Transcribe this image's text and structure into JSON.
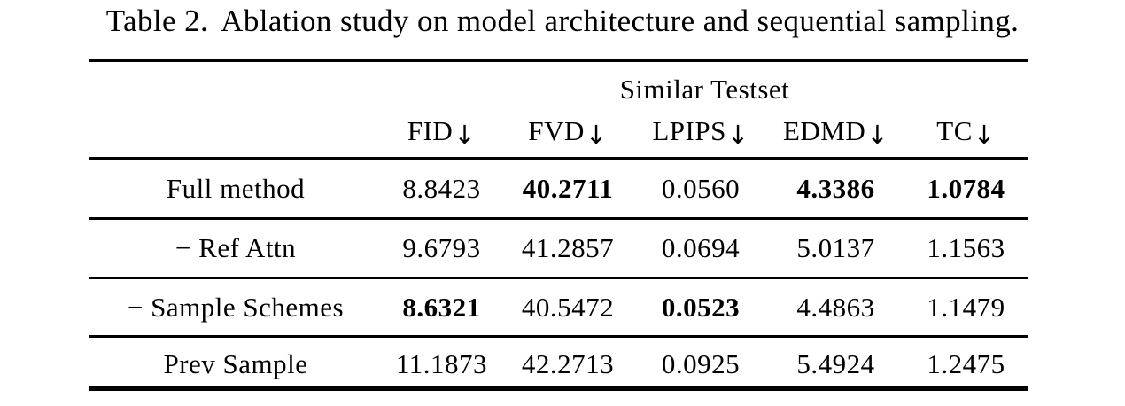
{
  "caption": {
    "label": "Table 2.",
    "text": "Ablation study on model architecture and sequential sampling."
  },
  "table": {
    "group_header": "Similar Testset",
    "columns": [
      {
        "name": "FID",
        "arrow": "↓"
      },
      {
        "name": "FVD",
        "arrow": "↓"
      },
      {
        "name": "LPIPS",
        "arrow": "↓"
      },
      {
        "name": "EDMD",
        "arrow": "↓"
      },
      {
        "name": "TC",
        "arrow": "↓"
      }
    ],
    "rows": [
      {
        "label": "Full method",
        "values": [
          "8.8423",
          "40.2711",
          "0.0560",
          "4.3386",
          "1.0784"
        ],
        "bold": [
          false,
          true,
          false,
          true,
          true
        ]
      },
      {
        "label": "− Ref Attn",
        "values": [
          "9.6793",
          "41.2857",
          "0.0694",
          "5.0137",
          "1.1563"
        ],
        "bold": [
          false,
          false,
          false,
          false,
          false
        ]
      },
      {
        "label": "− Sample Schemes",
        "values": [
          "8.6321",
          "40.5472",
          "0.0523",
          "4.4863",
          "1.1479"
        ],
        "bold": [
          true,
          false,
          true,
          false,
          false
        ]
      },
      {
        "label": "Prev Sample",
        "values": [
          "11.1873",
          "42.2713",
          "0.0925",
          "5.4924",
          "1.2475"
        ],
        "bold": [
          false,
          false,
          false,
          false,
          false
        ]
      }
    ]
  },
  "colors": {
    "background": "#ffffff",
    "text": "#000000",
    "rule": "#000000"
  }
}
